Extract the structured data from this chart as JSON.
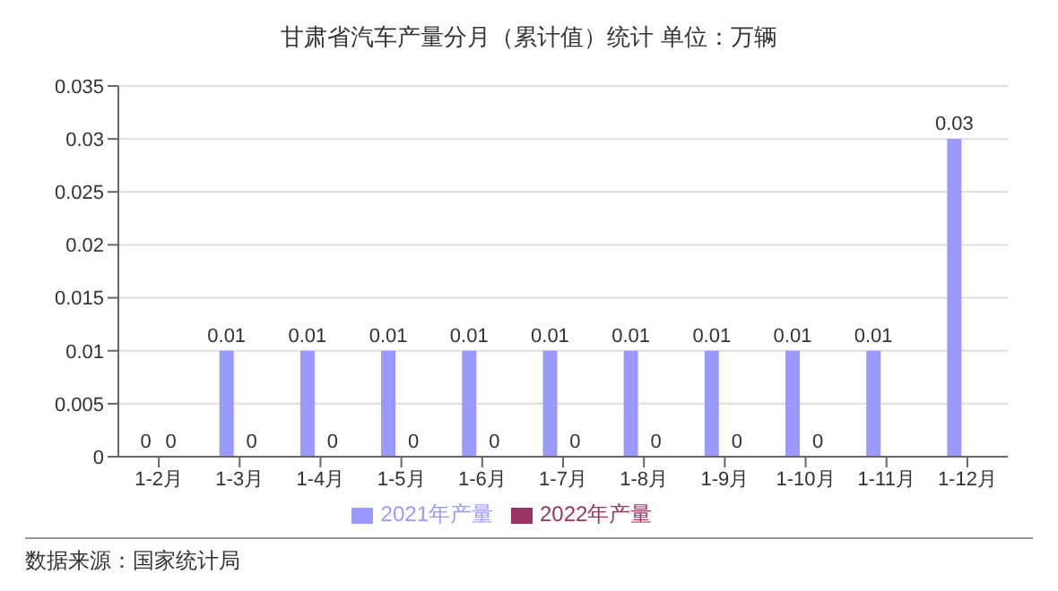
{
  "chart_data": {
    "type": "bar",
    "title": "甘肃省汽车产量分月（累计值）统计 单位：万辆",
    "categories": [
      "1-2月",
      "1-3月",
      "1-4月",
      "1-5月",
      "1-6月",
      "1-7月",
      "1-8月",
      "1-9月",
      "1-10月",
      "1-11月",
      "1-12月"
    ],
    "series": [
      {
        "name": "2021年产量",
        "color": "#9999ff",
        "values": [
          0,
          0.01,
          0.01,
          0.01,
          0.01,
          0.01,
          0.01,
          0.01,
          0.01,
          0.01,
          0.03
        ]
      },
      {
        "name": "2022年产量",
        "color": "#993366",
        "values": [
          0,
          0,
          0,
          0,
          0,
          0,
          0,
          0,
          0,
          null,
          null
        ]
      }
    ],
    "ylim": [
      0,
      0.035
    ],
    "yticks": [
      0,
      0.005,
      0.01,
      0.015,
      0.02,
      0.025,
      0.03,
      0.035
    ],
    "grid": "y",
    "legend": "bottom",
    "data_labels": true,
    "annotations": [
      "数据来源：国家统计局"
    ]
  }
}
